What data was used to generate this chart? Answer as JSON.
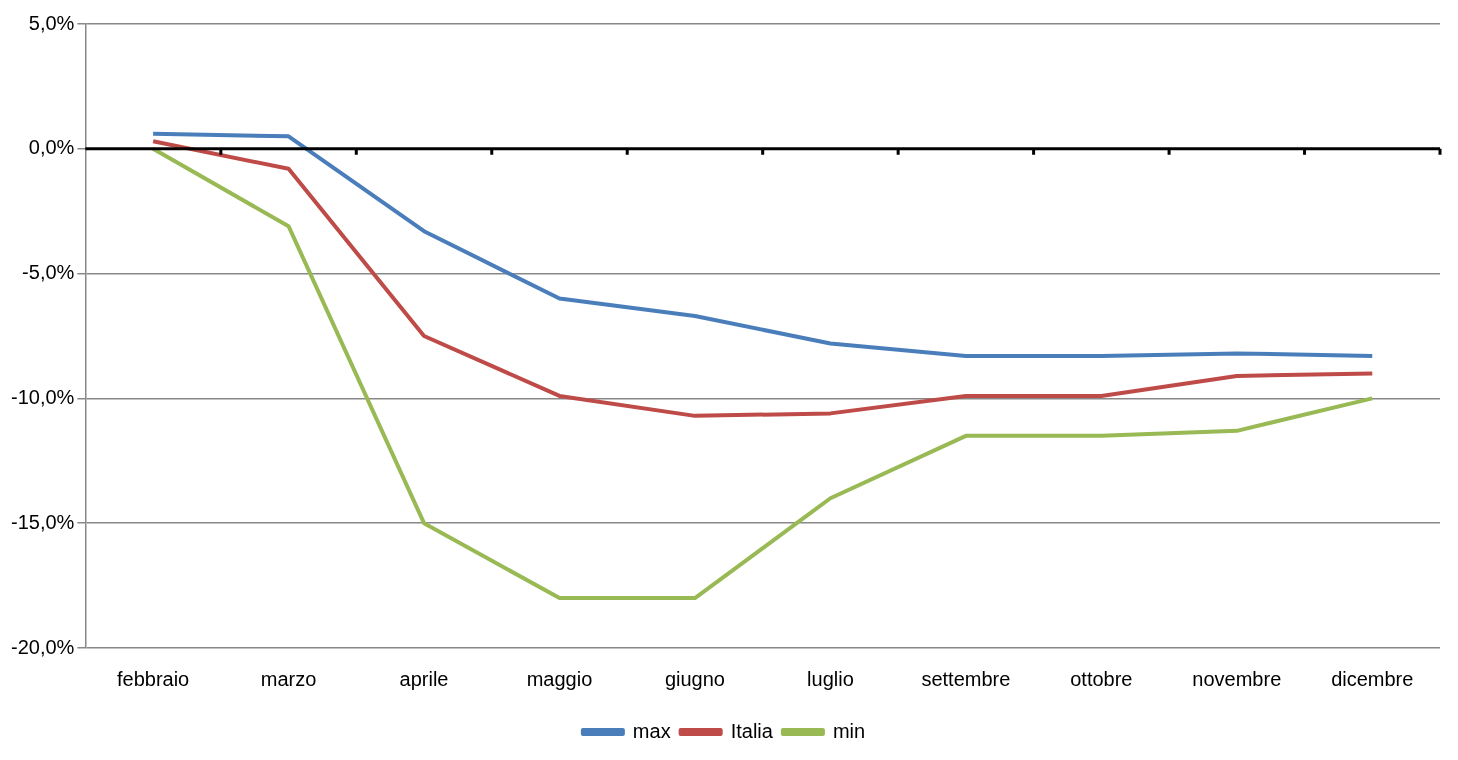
{
  "chart_data": {
    "type": "line",
    "categories": [
      "febbraio",
      "marzo",
      "aprile",
      "maggio",
      "giugno",
      "luglio",
      "settembre",
      "ottobre",
      "novembre",
      "dicembre"
    ],
    "series": [
      {
        "name": "max",
        "color": "#4a7ebb",
        "values": [
          0.6,
          0.5,
          -3.3,
          -6.0,
          -6.7,
          -7.8,
          -8.3,
          -8.3,
          -8.2,
          -8.3
        ]
      },
      {
        "name": "Italia",
        "color": "#be4b48",
        "values": [
          0.3,
          -0.8,
          -7.5,
          -9.9,
          -10.7,
          -10.6,
          -9.9,
          -9.9,
          -9.1,
          -9.0
        ]
      },
      {
        "name": "min",
        "color": "#98b954",
        "values": [
          0.0,
          -3.1,
          -15.0,
          -18.0,
          -18.0,
          -14.0,
          -11.5,
          -11.5,
          -11.3,
          -10.0
        ]
      }
    ],
    "ylim": [
      -20,
      5
    ],
    "yticks": [
      {
        "value": -20,
        "label": "-20,0%"
      },
      {
        "value": -15,
        "label": "-15,0%"
      },
      {
        "value": -10,
        "label": "-10,0%"
      },
      {
        "value": -5,
        "label": "-5,0%"
      },
      {
        "value": 0,
        "label": "0,0%"
      },
      {
        "value": 5,
        "label": "5,0%"
      }
    ],
    "grid": "y",
    "legend": "bottom",
    "marker": "none",
    "line_style": "solid"
  }
}
